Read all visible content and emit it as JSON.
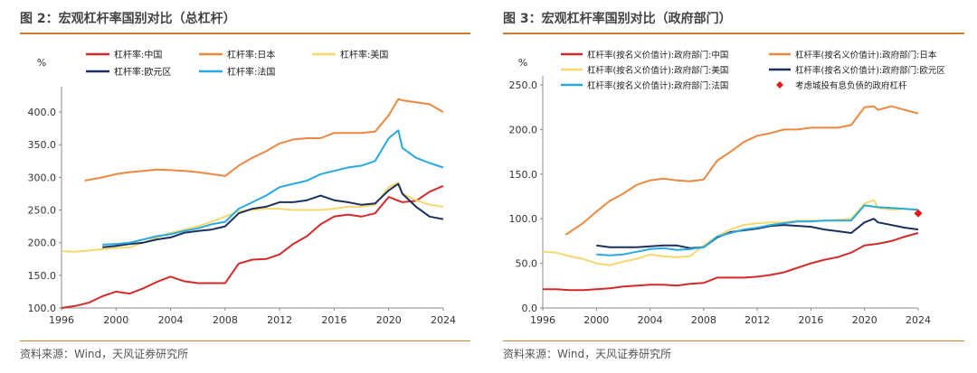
{
  "panels": [
    {
      "title": "图 2：宏观杠杆率国别对比（总杠杆）",
      "source": "资料来源：Wind，天风证券研究所"
    },
    {
      "title": "图 3：宏观杠杆率国别对比（政府部门）",
      "source": "资料来源：Wind，天风证券研究所"
    }
  ],
  "chart_data": [
    {
      "type": "line",
      "title": "图 2：宏观杠杆率国别对比（总杠杆）",
      "ylabel": "%",
      "xlim": [
        1996,
        2024
      ],
      "ylim": [
        100,
        425
      ],
      "yticks": [
        100.0,
        150.0,
        200.0,
        250.0,
        300.0,
        350.0,
        400.0
      ],
      "yticklabels": [
        "100.0",
        "150.0",
        "200.0",
        "250.0",
        "300.0",
        "350.0",
        "400.0"
      ],
      "xticks": [
        1996,
        2000,
        2004,
        2008,
        2012,
        2016,
        2020,
        2024
      ],
      "legend": "top",
      "series": [
        {
          "name": "杠杆率:中国",
          "color": "#d42a2a",
          "x": [
            1996,
            1997,
            1998,
            1999,
            2000,
            2001,
            2002,
            2003,
            2004,
            2005,
            2006,
            2007,
            2008,
            2009,
            2010,
            2011,
            2012,
            2013,
            2014,
            2015,
            2016,
            2017,
            2018,
            2019,
            2020,
            2021,
            2022,
            2023,
            2024
          ],
          "y": [
            100,
            103,
            108,
            118,
            125,
            122,
            130,
            140,
            148,
            141,
            138,
            138,
            138,
            168,
            174,
            175,
            182,
            198,
            210,
            228,
            240,
            243,
            240,
            245,
            270,
            262,
            264,
            278,
            287
          ]
        },
        {
          "name": "杠杆率:日本",
          "color": "#ee8840",
          "x": [
            1997.7,
            1999,
            2000,
            2001,
            2002,
            2003,
            2004,
            2005,
            2006,
            2007,
            2008,
            2009,
            2010,
            2011,
            2012,
            2013,
            2014,
            2015,
            2016,
            2017,
            2018,
            2019,
            2020,
            2020.7,
            2021,
            2022,
            2023,
            2024
          ],
          "y": [
            295,
            300,
            305,
            308,
            310,
            312,
            311,
            310,
            308,
            305,
            302,
            318,
            330,
            340,
            352,
            358,
            360,
            360,
            368,
            368,
            368,
            370,
            395,
            420,
            418,
            415,
            412,
            400
          ]
        },
        {
          "name": "杠杆率:美国",
          "color": "#f5d86e",
          "x": [
            1996,
            1997,
            1998,
            1999,
            2000,
            2001,
            2002,
            2003,
            2004,
            2005,
            2006,
            2007,
            2008,
            2009,
            2010,
            2011,
            2012,
            2013,
            2014,
            2015,
            2016,
            2017,
            2018,
            2019,
            2020,
            2020.7,
            2021,
            2022,
            2023,
            2024
          ],
          "y": [
            187,
            186,
            188,
            190,
            192,
            193,
            200,
            208,
            215,
            220,
            225,
            232,
            240,
            248,
            250,
            252,
            252,
            250,
            250,
            250,
            252,
            255,
            255,
            258,
            285,
            292,
            275,
            265,
            258,
            255
          ]
        },
        {
          "name": "杠杆率:欧元区",
          "color": "#1c2f5e",
          "x": [
            1999,
            2000,
            2001,
            2002,
            2003,
            2004,
            2005,
            2006,
            2007,
            2008,
            2009,
            2010,
            2011,
            2012,
            2013,
            2014,
            2015,
            2016,
            2017,
            2018,
            2019,
            2020,
            2020.7,
            2021,
            2022,
            2023,
            2024
          ],
          "y": [
            193,
            195,
            198,
            200,
            205,
            208,
            215,
            218,
            220,
            225,
            245,
            252,
            255,
            262,
            262,
            265,
            272,
            265,
            262,
            258,
            260,
            280,
            290,
            275,
            255,
            240,
            236
          ]
        },
        {
          "name": "杠杆率:法国",
          "color": "#27a9e1",
          "x": [
            1999,
            2000,
            2001,
            2002,
            2003,
            2004,
            2005,
            2006,
            2007,
            2008,
            2009,
            2010,
            2011,
            2012,
            2013,
            2014,
            2015,
            2016,
            2017,
            2018,
            2019,
            2020,
            2020.7,
            2021,
            2022,
            2023,
            2024
          ],
          "y": [
            197,
            198,
            200,
            205,
            210,
            213,
            218,
            222,
            228,
            232,
            252,
            262,
            272,
            285,
            290,
            295,
            305,
            310,
            315,
            318,
            325,
            360,
            372,
            345,
            330,
            322,
            315
          ]
        }
      ]
    },
    {
      "type": "line",
      "title": "图 3：宏观杠杆率国别对比（政府部门）",
      "ylabel": "%",
      "xlim": [
        1996,
        2024
      ],
      "ylim": [
        0,
        250
      ],
      "yticks": [
        0.0,
        50.0,
        100.0,
        150.0,
        200.0,
        250.0
      ],
      "yticklabels": [
        "0.0",
        "50.0",
        "100.0",
        "150.0",
        "200.0",
        "250.0"
      ],
      "xticks": [
        1996,
        2000,
        2004,
        2008,
        2012,
        2016,
        2020,
        2024
      ],
      "legend": "top",
      "series": [
        {
          "name": "杠杆率(按名义价值计):政府部门:中国",
          "color": "#d42a2a",
          "x": [
            1996,
            1997,
            1998,
            1999,
            2000,
            2001,
            2002,
            2003,
            2004,
            2005,
            2006,
            2007,
            2008,
            2009,
            2010,
            2011,
            2012,
            2013,
            2014,
            2015,
            2016,
            2017,
            2018,
            2019,
            2020,
            2021,
            2022,
            2023,
            2024
          ],
          "y": [
            21,
            21,
            20,
            20,
            21,
            22,
            24,
            25,
            26,
            26,
            25,
            27,
            28,
            34,
            34,
            34,
            35,
            37,
            40,
            45,
            50,
            54,
            57,
            62,
            70,
            72,
            75,
            80,
            84
          ]
        },
        {
          "name": "杠杆率(按名义价值计):政府部门:日本",
          "color": "#ee8840",
          "x": [
            1997.7,
            1999,
            2000,
            2001,
            2002,
            2003,
            2004,
            2005,
            2006,
            2007,
            2008,
            2009,
            2010,
            2011,
            2012,
            2013,
            2014,
            2015,
            2016,
            2017,
            2018,
            2019,
            2020,
            2020.7,
            2021,
            2022,
            2023,
            2024
          ],
          "y": [
            82,
            95,
            108,
            120,
            128,
            138,
            143,
            145,
            143,
            142,
            144,
            165,
            175,
            186,
            193,
            196,
            200,
            200,
            202,
            202,
            202,
            205,
            225,
            226,
            222,
            226,
            222,
            218
          ]
        },
        {
          "name": "杠杆率(按名义价值计):政府部门:美国",
          "color": "#f5d86e",
          "x": [
            1996,
            1997,
            1998,
            1999,
            2000,
            2001,
            2002,
            2003,
            2004,
            2005,
            2006,
            2007,
            2008,
            2009,
            2010,
            2011,
            2012,
            2013,
            2014,
            2015,
            2016,
            2017,
            2018,
            2019,
            2020,
            2020.7,
            2021,
            2022,
            2023,
            2024
          ],
          "y": [
            63,
            62,
            58,
            55,
            50,
            48,
            52,
            55,
            60,
            58,
            57,
            58,
            70,
            80,
            88,
            93,
            95,
            96,
            96,
            98,
            98,
            98,
            99,
            100,
            117,
            121,
            112,
            110,
            111,
            110
          ]
        },
        {
          "name": "杠杆率(按名义价值计):政府部门:欧元区",
          "color": "#1c2f5e",
          "x": [
            2000,
            2001,
            2002,
            2003,
            2004,
            2005,
            2006,
            2007,
            2008,
            2009,
            2010,
            2011,
            2012,
            2013,
            2014,
            2015,
            2016,
            2017,
            2018,
            2019,
            2020,
            2020.7,
            2021,
            2022,
            2023,
            2024
          ],
          "y": [
            70,
            68,
            68,
            68,
            69,
            70,
            70,
            67,
            68,
            79,
            85,
            87,
            89,
            92,
            93,
            92,
            91,
            88,
            86,
            84,
            96,
            100,
            96,
            93,
            90,
            88
          ]
        },
        {
          "name": "杠杆率(按名义价值计):政府部门:法国",
          "color": "#27a9e1",
          "x": [
            2000,
            2001,
            2002,
            2003,
            2004,
            2005,
            2006,
            2007,
            2008,
            2009,
            2010,
            2011,
            2012,
            2013,
            2014,
            2015,
            2016,
            2017,
            2018,
            2019,
            2020,
            2021,
            2022,
            2023,
            2024
          ],
          "y": [
            60,
            59,
            60,
            63,
            66,
            67,
            65,
            66,
            68,
            80,
            84,
            88,
            90,
            93,
            95,
            97,
            97,
            98,
            98,
            98,
            115,
            113,
            112,
            111,
            110
          ]
        },
        {
          "name": "考虑城投有息负债的政府杠杆",
          "color": "#e21b1b",
          "marker": "diamond",
          "x": [
            2024
          ],
          "y": [
            106
          ]
        }
      ]
    }
  ]
}
